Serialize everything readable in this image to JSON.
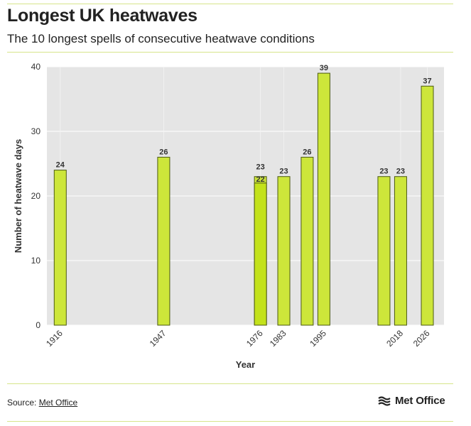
{
  "header": {
    "title": "Longest UK heatwaves",
    "subtitle": "The 10 longest spells of consecutive heatwave conditions"
  },
  "footer": {
    "source_label": "Source:",
    "source_link": "Met Office",
    "logo_text": "Met Office",
    "logo_icon": "met-office-wave-icon"
  },
  "colors": {
    "bar": "#cde63a",
    "bar_highlight": "#c3e21b",
    "bar_stroke": "#4c5a12",
    "plot_bg": "#e5e5e5",
    "rule": "#d7e58a"
  },
  "chart_data": {
    "type": "bar",
    "xlabel": "Year",
    "ylabel": "Number of heatwave days",
    "ylim": [
      0,
      40
    ],
    "yticks": [
      0,
      10,
      20,
      30,
      40
    ],
    "xlim": [
      1912,
      2031
    ],
    "xticks": [
      1916,
      1947,
      1976,
      1983,
      1995,
      2018,
      2026
    ],
    "grid": true,
    "bars": [
      {
        "year": 1916,
        "value": 24
      },
      {
        "year": 1947,
        "value": 26
      },
      {
        "year": 1976,
        "value": 23
      },
      {
        "year": 1976,
        "value": 22
      },
      {
        "year": 1983,
        "value": 23
      },
      {
        "year": 1990,
        "value": 26
      },
      {
        "year": 1995,
        "value": 39
      },
      {
        "year": 2013,
        "value": 23
      },
      {
        "year": 2018,
        "value": 23
      },
      {
        "year": 2026,
        "value": 37
      }
    ]
  }
}
